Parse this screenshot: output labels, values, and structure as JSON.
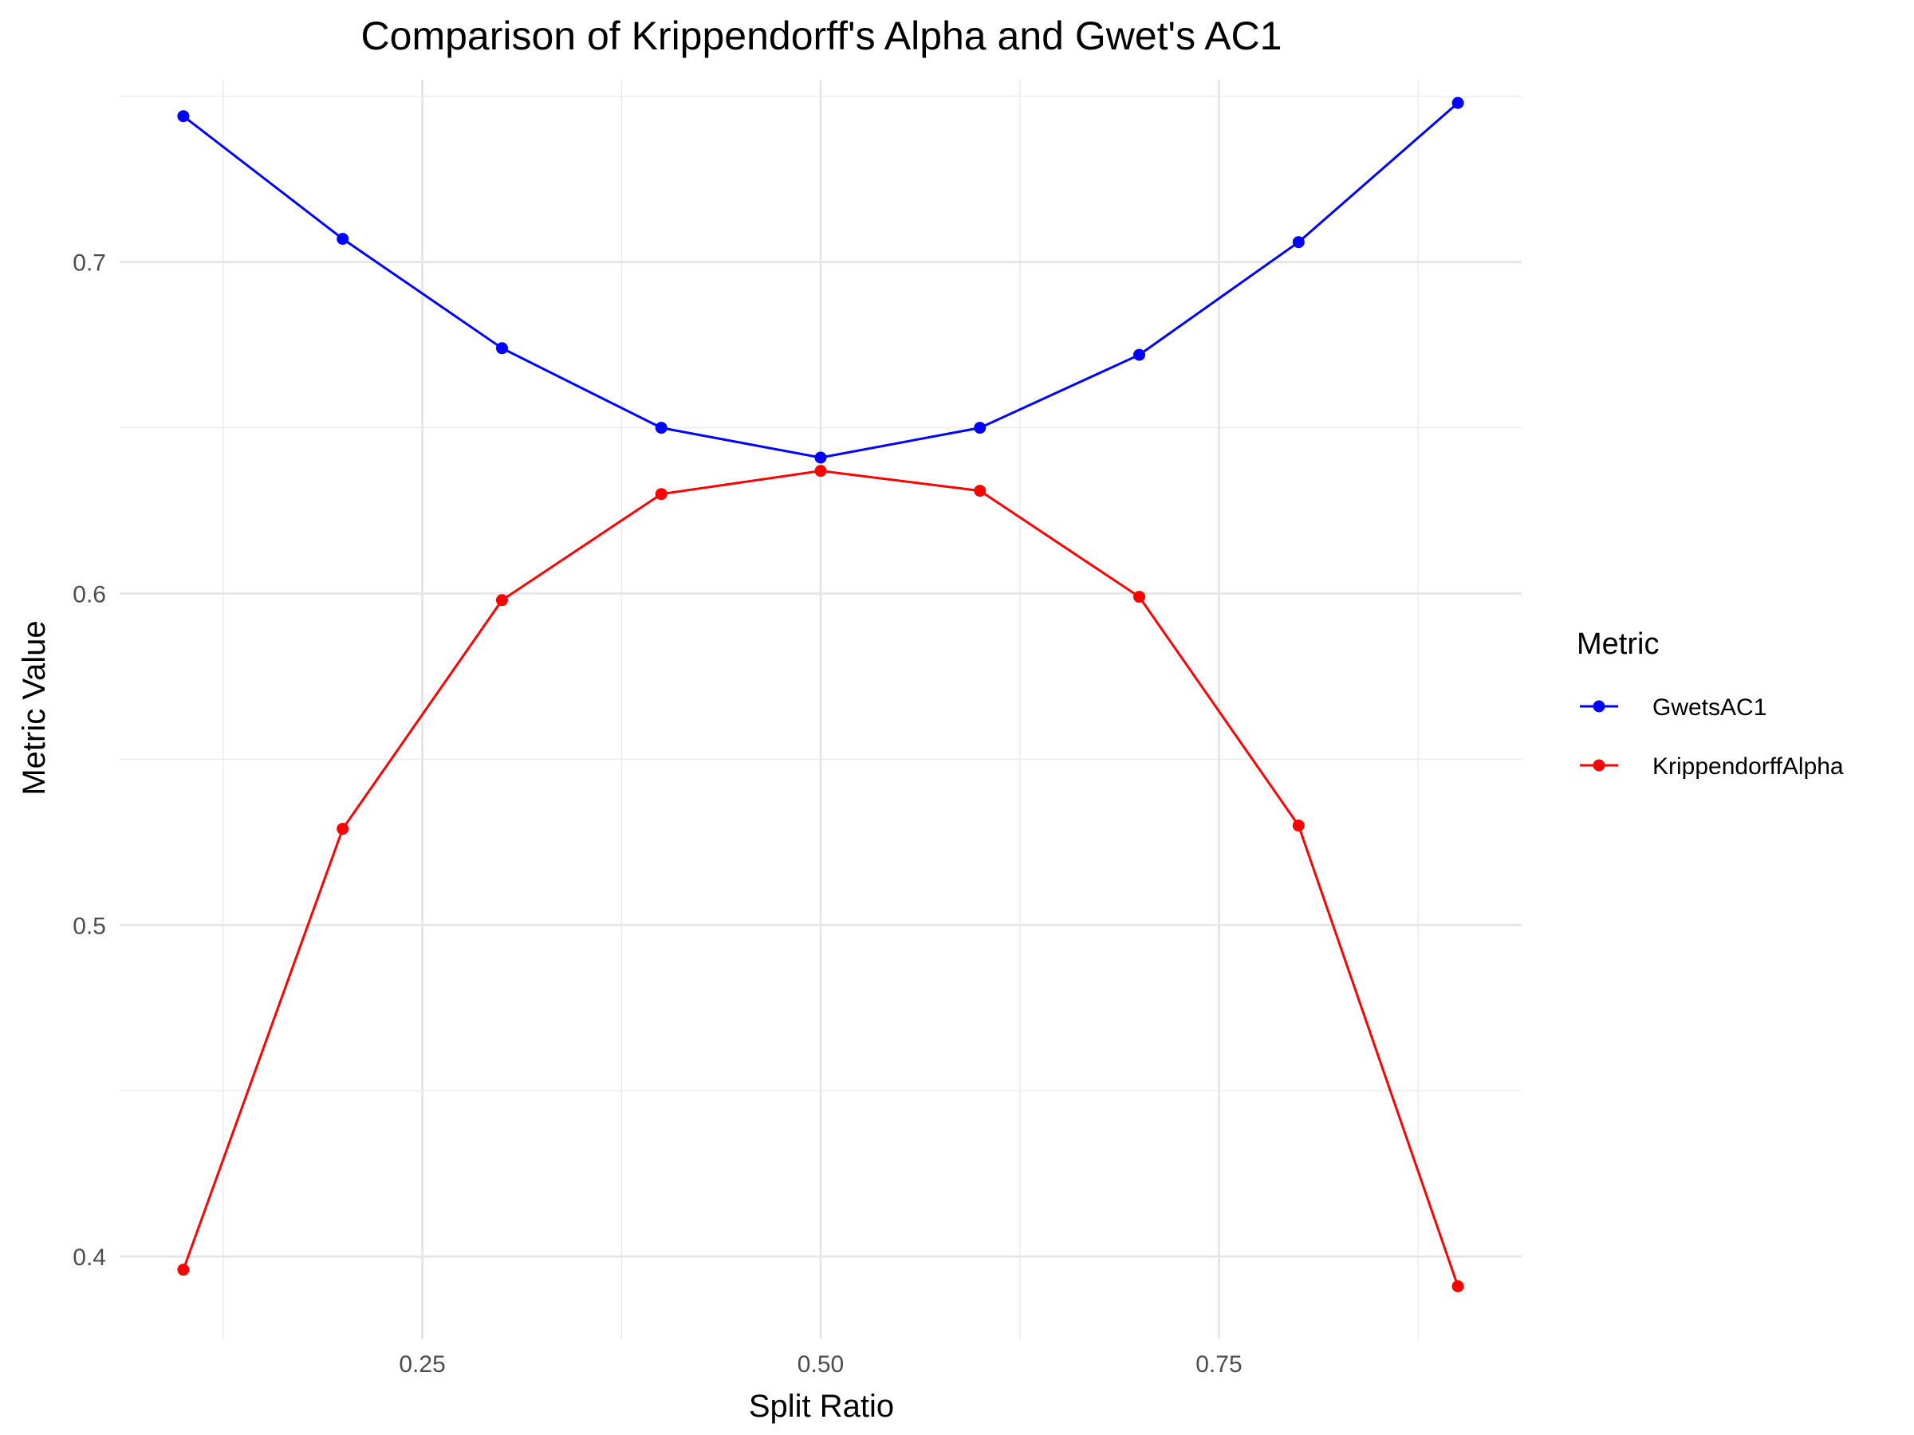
{
  "chart_data": {
    "type": "line",
    "title": "Comparison of Krippendorff's Alpha and Gwet's AC1",
    "xlabel": "Split Ratio",
    "ylabel": "Metric Value",
    "x": [
      0.1,
      0.2,
      0.3,
      0.4,
      0.5,
      0.6,
      0.7,
      0.8,
      0.9
    ],
    "xlim": [
      0.06,
      0.94
    ],
    "ylim": [
      0.375,
      0.755
    ],
    "x_ticks": [
      0.25,
      0.5,
      0.75
    ],
    "x_tick_labels": [
      "0.25",
      "0.50",
      "0.75"
    ],
    "y_ticks": [
      0.4,
      0.5,
      0.6,
      0.7
    ],
    "y_tick_labels": [
      "0.4",
      "0.5",
      "0.6",
      "0.7"
    ],
    "grid": true,
    "legend": {
      "title": "Metric",
      "placement": "right"
    },
    "series": [
      {
        "name": "GwetsAC1",
        "color": "#0000FF",
        "values": [
          0.744,
          0.707,
          0.674,
          0.65,
          0.641,
          0.65,
          0.672,
          0.706,
          0.748
        ]
      },
      {
        "name": "KrippendorffAlpha",
        "color": "#FF0000",
        "values": [
          0.396,
          0.529,
          0.598,
          0.63,
          0.637,
          0.631,
          0.599,
          0.53,
          0.391
        ]
      }
    ]
  }
}
